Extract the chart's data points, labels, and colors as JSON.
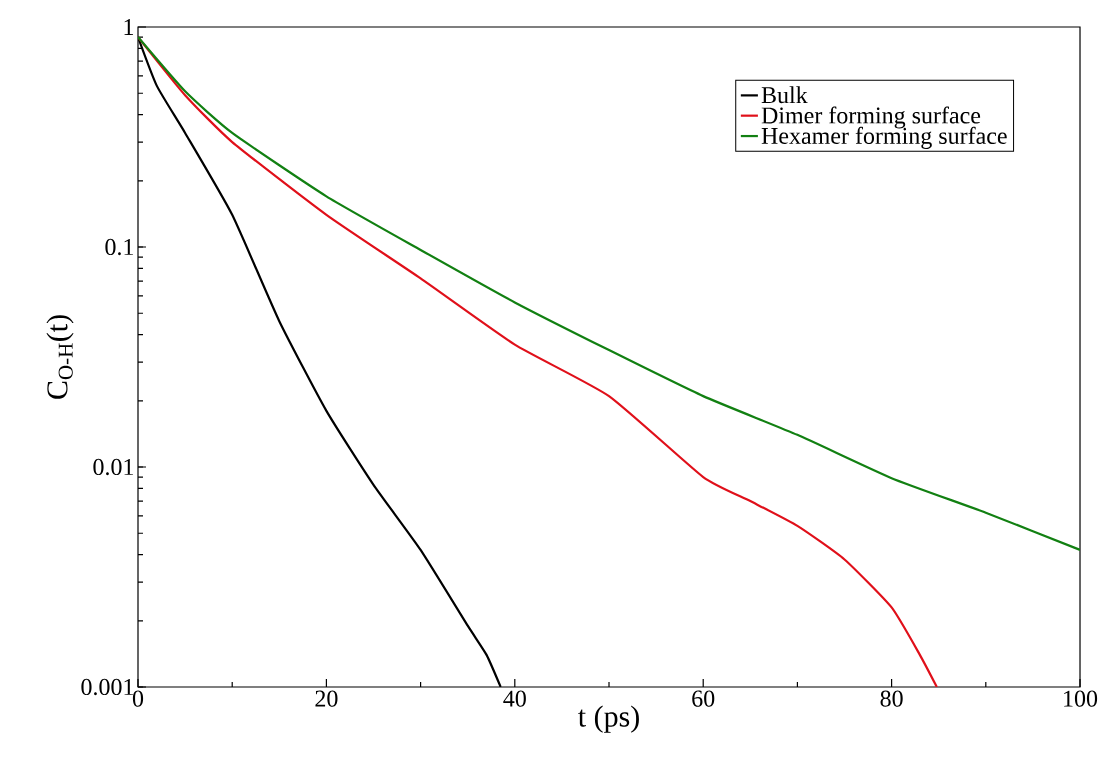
{
  "chart_data": {
    "type": "line",
    "xlabel": "t (ps)",
    "ylabel": "C$_{O-H}$(t)",
    "log": "y",
    "xlim": [
      0,
      100
    ],
    "xticks": [
      0,
      20,
      40,
      60,
      80,
      100
    ],
    "ylim": [
      0.001,
      1
    ],
    "yticks": [
      0.001,
      0.01,
      0.1,
      1
    ],
    "legend": "top right",
    "grid": false,
    "series": [
      {
        "name": "Bulk",
        "color": "#000000",
        "x": [
          0,
          2,
          5,
          10,
          15,
          20,
          25,
          30,
          35,
          37,
          38.5
        ],
        "values": [
          0.9,
          0.54,
          0.33,
          0.14,
          0.046,
          0.018,
          0.0083,
          0.0042,
          0.0019,
          0.0014,
          0.001
        ]
      },
      {
        "name": "Dimer forming surface",
        "color": "#e0101a",
        "x": [
          0,
          5,
          10,
          20,
          30,
          40,
          50,
          60,
          65,
          70,
          75,
          80,
          83,
          84.8
        ],
        "values": [
          0.9,
          0.49,
          0.3,
          0.14,
          0.072,
          0.036,
          0.021,
          0.009,
          0.007,
          0.0054,
          0.0038,
          0.0023,
          0.0014,
          0.001
        ]
      },
      {
        "name": "Hexamer forming surface",
        "color": "#128012",
        "x": [
          0,
          5,
          10,
          20,
          30,
          40,
          50,
          60,
          70,
          80,
          90,
          100
        ],
        "values": [
          0.9,
          0.51,
          0.33,
          0.17,
          0.097,
          0.056,
          0.034,
          0.021,
          0.014,
          0.0089,
          0.0062,
          0.0042
        ]
      }
    ]
  }
}
